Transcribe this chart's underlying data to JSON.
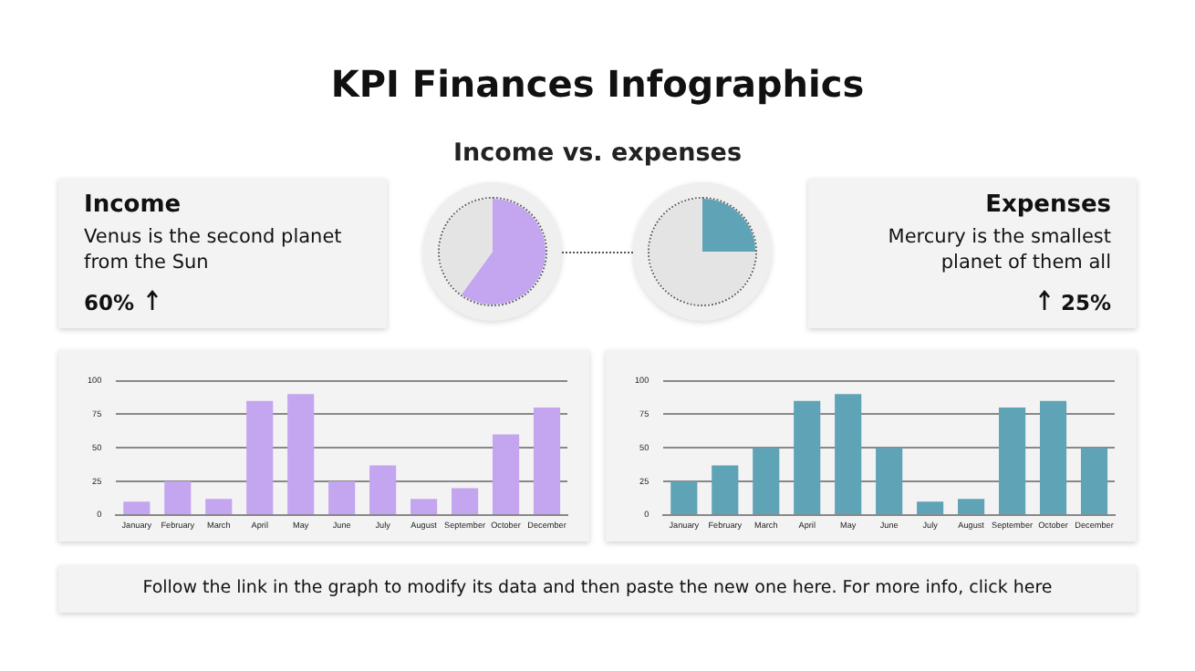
{
  "chart_data": [
    {
      "type": "other",
      "title": "KPI Finances Infographics",
      "subtitle": "Income vs. expenses",
      "annotations": [
        "Follow the link in the graph to modify its data and then paste the new one here. For more info, click here"
      ]
    },
    {
      "type": "pie",
      "title": "Income",
      "annotations": [
        "Venus is the second planet from the Sun",
        "60%"
      ],
      "categories": [
        null,
        null
      ],
      "values": [
        60,
        40
      ],
      "colors": [
        "#c3a6ef",
        "#e4e4e4"
      ],
      "legend": false
    },
    {
      "type": "pie",
      "title": "Expenses",
      "annotations": [
        "Mercury is the smallest planet of them all",
        "25%"
      ],
      "categories": [
        null,
        null
      ],
      "values": [
        25,
        75
      ],
      "colors": [
        "#5fa3b7",
        "#e4e4e4"
      ],
      "legend": false
    },
    {
      "type": "bar",
      "categories": [
        "January",
        "February",
        "March",
        "April",
        "May",
        "June",
        "July",
        "August",
        "September",
        "October",
        "December"
      ],
      "values": [
        10,
        25,
        12,
        85,
        90,
        25,
        37,
        12,
        20,
        60,
        80
      ],
      "color": "#c3a6ef",
      "ylim": [
        0,
        100
      ],
      "yticks": [
        0,
        25,
        50,
        75,
        100
      ],
      "grid": "y",
      "legend": false
    },
    {
      "type": "bar",
      "categories": [
        "January",
        "February",
        "March",
        "April",
        "May",
        "June",
        "July",
        "August",
        "September",
        "October",
        "December"
      ],
      "values": [
        25,
        37,
        50,
        85,
        90,
        50,
        10,
        12,
        80,
        85,
        50
      ],
      "color": "#5fa3b7",
      "ylim": [
        0,
        100
      ],
      "yticks": [
        0,
        25,
        50,
        75,
        100
      ],
      "grid": "y",
      "legend": false
    }
  ]
}
